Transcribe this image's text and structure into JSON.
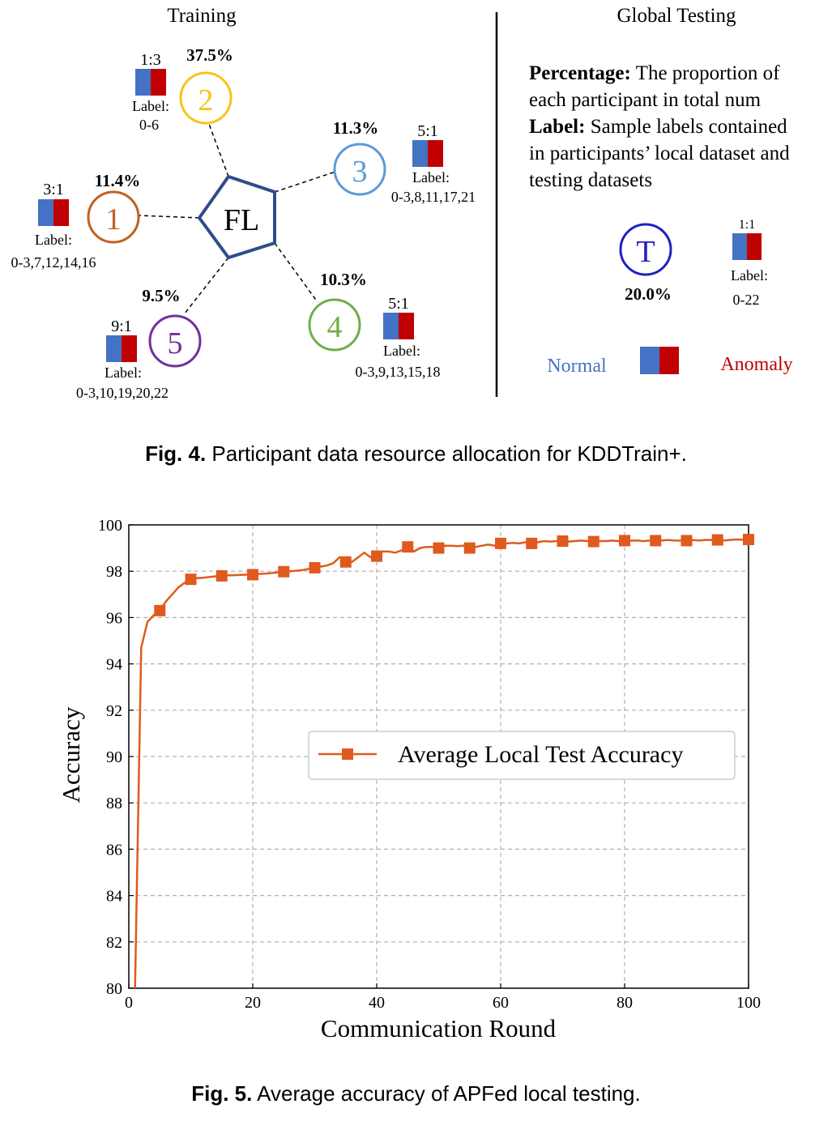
{
  "fig4": {
    "training_title": "Training",
    "global_title": "Global Testing",
    "center_label": "FL",
    "participants": [
      {
        "id": "1",
        "percent": "11.4%",
        "ratio": "3:1",
        "label_title": "Label:",
        "labels": "0-3,7,12,14,16",
        "color": "#c0611f"
      },
      {
        "id": "2",
        "percent": "37.5%",
        "ratio": "1:3",
        "label_title": "Label:",
        "labels": "0-6",
        "color": "#f5c518"
      },
      {
        "id": "3",
        "percent": "11.3%",
        "ratio": "5:1",
        "label_title": "Label:",
        "labels": "0-3,8,11,17,21",
        "color": "#5b9bd5"
      },
      {
        "id": "4",
        "percent": "10.3%",
        "ratio": "5:1",
        "label_title": "Label:",
        "labels": "0-3,9,13,15,18",
        "color": "#70ad47"
      },
      {
        "id": "5",
        "percent": "9.5%",
        "ratio": "9:1",
        "label_title": "Label:",
        "labels": "0-3,10,19,20,22",
        "color": "#7030a0"
      }
    ],
    "desc_percentage_term": "Percentage:",
    "desc_percentage_line1": "The proportion of",
    "desc_percentage_line2": "each participant in total num",
    "desc_label_term": "Label:",
    "desc_label_line1": "Sample labels contained",
    "desc_label_line2": "in participants’ local dataset and",
    "desc_label_line3": "testing datasets",
    "test_node": {
      "id": "T",
      "percent": "20.0%",
      "ratio": "1:1",
      "label_title": "Label:",
      "labels": "0-22",
      "color": "#2020c0"
    },
    "legend_normal": "Normal",
    "legend_anomaly": "Anomaly",
    "normal_color": "#4472c4",
    "anomaly_color": "#c00000",
    "fl_color": "#2e4d8a"
  },
  "caption4": {
    "fig": "Fig. 4.",
    "text": "Participant data resource allocation for KDDTrain+."
  },
  "caption5": {
    "fig": "Fig. 5.",
    "text": "Average accuracy of APFed local testing."
  },
  "chart_data": {
    "type": "line",
    "xlabel": "Communication Round",
    "ylabel": "Accuracy",
    "xlim": [
      0,
      100
    ],
    "ylim": [
      80,
      100
    ],
    "xticks": [
      0,
      20,
      40,
      60,
      80,
      100
    ],
    "yticks": [
      80,
      82,
      84,
      86,
      88,
      90,
      92,
      94,
      96,
      98,
      100
    ],
    "grid": true,
    "legend_position": "center-right",
    "series": [
      {
        "name": "Average Local Test Accuracy",
        "color": "#e05a1e",
        "marker": "square",
        "marker_every": 5,
        "x": [
          1,
          2,
          3,
          4,
          5,
          6,
          7,
          8,
          9,
          10,
          11,
          12,
          13,
          14,
          15,
          16,
          17,
          18,
          19,
          20,
          21,
          22,
          23,
          24,
          25,
          26,
          27,
          28,
          29,
          30,
          31,
          32,
          33,
          34,
          35,
          36,
          37,
          38,
          39,
          40,
          41,
          42,
          43,
          44,
          45,
          46,
          47,
          48,
          49,
          50,
          51,
          52,
          53,
          54,
          55,
          56,
          57,
          58,
          59,
          60,
          61,
          62,
          63,
          64,
          65,
          66,
          67,
          68,
          69,
          70,
          71,
          72,
          73,
          74,
          75,
          76,
          77,
          78,
          79,
          80,
          81,
          82,
          83,
          84,
          85,
          86,
          87,
          88,
          89,
          90,
          91,
          92,
          93,
          94,
          95,
          96,
          97,
          98,
          99,
          100
        ],
        "y": [
          80.0,
          94.7,
          95.8,
          96.1,
          96.3,
          96.7,
          97.0,
          97.3,
          97.5,
          97.65,
          97.7,
          97.72,
          97.75,
          97.78,
          97.8,
          97.82,
          97.83,
          97.84,
          97.85,
          97.85,
          97.88,
          97.9,
          97.92,
          97.95,
          97.98,
          98.0,
          98.02,
          98.05,
          98.1,
          98.15,
          98.2,
          98.25,
          98.35,
          98.6,
          98.4,
          98.4,
          98.6,
          98.8,
          98.6,
          98.65,
          98.85,
          98.85,
          98.8,
          98.9,
          99.05,
          98.85,
          99.0,
          99.05,
          99.05,
          99.0,
          99.1,
          99.1,
          99.08,
          99.1,
          99.0,
          99.05,
          99.1,
          99.15,
          99.1,
          99.2,
          99.2,
          99.22,
          99.2,
          99.25,
          99.2,
          99.25,
          99.3,
          99.28,
          99.3,
          99.3,
          99.28,
          99.3,
          99.32,
          99.3,
          99.28,
          99.3,
          99.3,
          99.32,
          99.3,
          99.32,
          99.32,
          99.33,
          99.3,
          99.32,
          99.32,
          99.33,
          99.35,
          99.33,
          99.32,
          99.32,
          99.35,
          99.33,
          99.35,
          99.35,
          99.35,
          99.33,
          99.35,
          99.37,
          99.36,
          99.37
        ]
      }
    ]
  }
}
